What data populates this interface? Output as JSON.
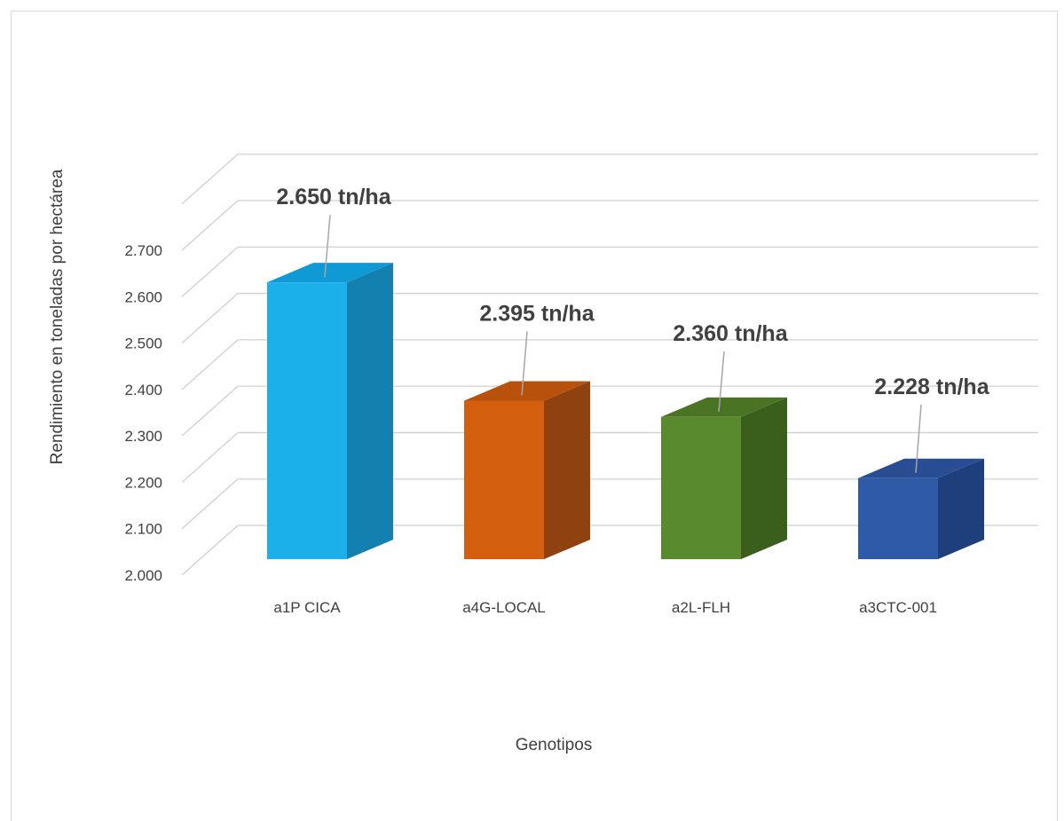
{
  "chart_data": {
    "type": "bar",
    "title": "",
    "xlabel": "Genotipos",
    "ylabel": "Rendimiento en toneladas  por hectárea",
    "ylim": [
      2.0,
      2.7
    ],
    "yticks": [
      "2.000",
      "2.100",
      "2.200",
      "2.300",
      "2.400",
      "2.500",
      "2.600",
      "2.700"
    ],
    "grid": true,
    "style": "3d-column",
    "categories": [
      "a1P CICA",
      "a4G-LOCAL",
      "a2L-FLH",
      "a3CTC-001"
    ],
    "values": [
      2.65,
      2.395,
      2.36,
      2.228
    ],
    "data_labels": [
      "2.650 tn/ha",
      "2.395 tn/ha",
      "2.360 tn/ha",
      "2.228 tn/ha"
    ],
    "colors": [
      {
        "front": "#1cb0ea",
        "side": "#1380b0",
        "top": "#0f9ad6"
      },
      {
        "front": "#d4600f",
        "side": "#8f4210",
        "top": "#b8510c"
      },
      {
        "front": "#5a8a2e",
        "side": "#3a5e1c",
        "top": "#4a7424"
      },
      {
        "front": "#2e5aa8",
        "side": "#1f3f7c",
        "top": "#284d92"
      }
    ]
  }
}
